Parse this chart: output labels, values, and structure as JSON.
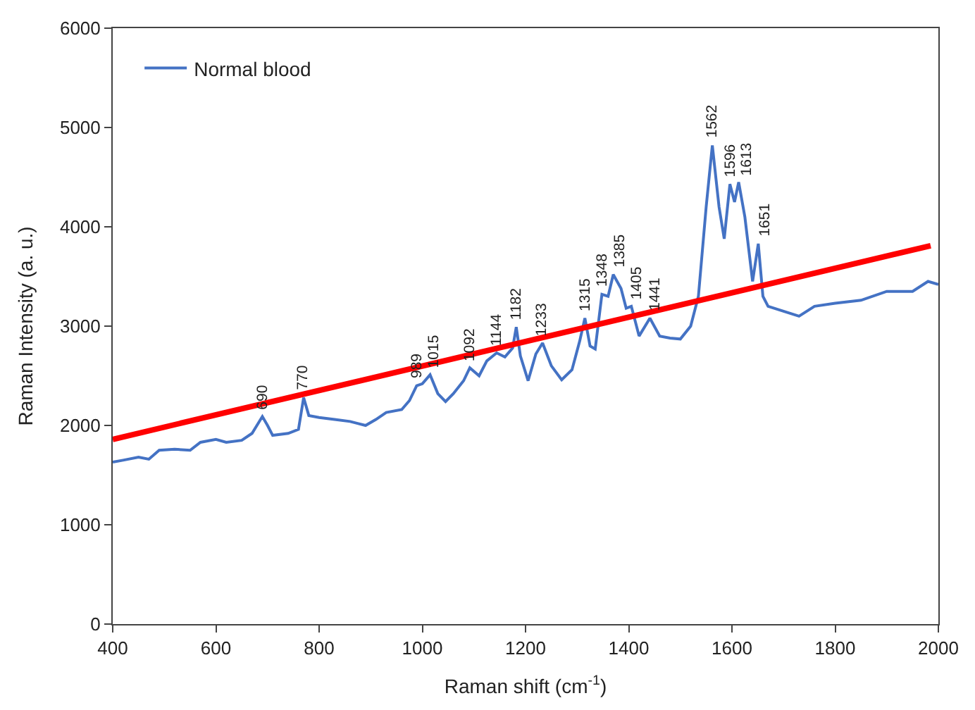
{
  "chart_data": {
    "type": "line",
    "xlabel": "Raman shift (cm$^{-1}$)",
    "ylabel": "Raman Intensity (a. u.)",
    "xlim": [
      400,
      2000
    ],
    "xticks": [
      400,
      600,
      800,
      1000,
      1200,
      1400,
      1600,
      1800,
      2000
    ],
    "ylim": [
      0,
      6000
    ],
    "yticks": [
      0,
      1000,
      2000,
      3000,
      4000,
      5000,
      6000
    ],
    "legend": "top left",
    "marker": "none",
    "line_style": "solid",
    "series": [
      {
        "name": "Normal blood",
        "color": "#4472c4",
        "x": [
          400,
          420,
          450,
          470,
          490,
          520,
          550,
          570,
          600,
          620,
          650,
          670,
          690,
          700,
          710,
          740,
          760,
          770,
          780,
          800,
          830,
          860,
          890,
          910,
          930,
          960,
          975,
          989,
          1000,
          1015,
          1030,
          1045,
          1060,
          1080,
          1092,
          1110,
          1125,
          1144,
          1160,
          1175,
          1182,
          1190,
          1205,
          1220,
          1233,
          1250,
          1270,
          1290,
          1305,
          1315,
          1325,
          1335,
          1348,
          1360,
          1370,
          1385,
          1395,
          1405,
          1420,
          1441,
          1460,
          1480,
          1500,
          1520,
          1535,
          1550,
          1562,
          1575,
          1585,
          1596,
          1605,
          1613,
          1625,
          1640,
          1651,
          1660,
          1670,
          1700,
          1730,
          1760,
          1800,
          1850,
          1900,
          1950,
          1980,
          2000
        ],
        "values": [
          1630,
          1650,
          1680,
          1660,
          1750,
          1760,
          1750,
          1830,
          1860,
          1830,
          1850,
          1920,
          2090,
          2000,
          1900,
          1920,
          1960,
          2280,
          2100,
          2080,
          2060,
          2040,
          2000,
          2060,
          2130,
          2160,
          2250,
          2400,
          2420,
          2510,
          2320,
          2240,
          2320,
          2450,
          2580,
          2500,
          2650,
          2730,
          2690,
          2780,
          2990,
          2700,
          2450,
          2720,
          2830,
          2600,
          2460,
          2560,
          2850,
          3080,
          2800,
          2770,
          3320,
          3300,
          3520,
          3380,
          3180,
          3200,
          2900,
          3080,
          2900,
          2880,
          2870,
          3000,
          3300,
          4200,
          4820,
          4200,
          3880,
          4430,
          4250,
          4450,
          4100,
          3450,
          3830,
          3300,
          3200,
          3150,
          3100,
          3200,
          3230,
          3260,
          3350,
          3350,
          3450,
          3420
        ]
      },
      {
        "color": "#ff0000",
        "x": [
          400,
          1985
        ],
        "values": [
          1860,
          3810
        ]
      }
    ],
    "annotations": [
      {
        "text": "690",
        "x": 690,
        "y": 2090
      },
      {
        "text": "770",
        "x": 770,
        "y": 2280
      },
      {
        "text": "989",
        "x": 989,
        "y": 2400
      },
      {
        "text": "1015",
        "x": 1015,
        "y": 2510
      },
      {
        "text": "1092",
        "x": 1092,
        "y": 2580
      },
      {
        "text": "1144",
        "x": 1144,
        "y": 2730
      },
      {
        "text": "1182",
        "x": 1182,
        "y": 2990
      },
      {
        "text": "1233",
        "x": 1233,
        "y": 2830
      },
      {
        "text": "1315",
        "x": 1315,
        "y": 3080
      },
      {
        "text": "1348",
        "x": 1348,
        "y": 3320
      },
      {
        "text": "1385",
        "x": 1370,
        "y": 3520
      },
      {
        "text": "1405",
        "x": 1405,
        "y": 3200
      },
      {
        "text": "1441",
        "x": 1441,
        "y": 3080
      },
      {
        "text": "1562",
        "x": 1562,
        "y": 4820
      },
      {
        "text": "1596",
        "x": 1596,
        "y": 4430
      },
      {
        "text": "1613",
        "x": 1613,
        "y": 4450
      },
      {
        "text": "1651",
        "x": 1651,
        "y": 3830
      }
    ]
  }
}
